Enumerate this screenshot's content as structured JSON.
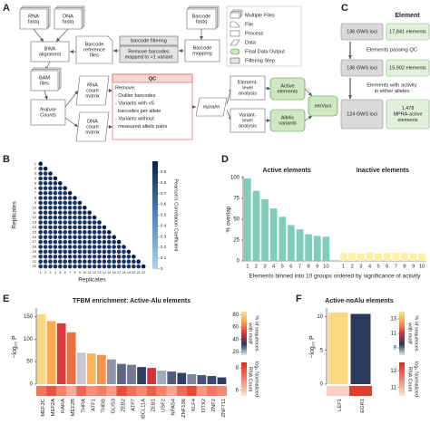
{
  "panel_a": {
    "label": "A",
    "nodes": [
      {
        "lines": [
          "RNA",
          "fastq"
        ]
      },
      {
        "lines": [
          "DNA",
          "fastq"
        ]
      },
      {
        "lines": [
          "BWA",
          "alignment"
        ]
      },
      {
        "lines": [
          "Barcode",
          "reference",
          "files"
        ]
      },
      {
        "lines": [
          "barcode filtering"
        ]
      },
      {
        "lines": [
          "Remove barcodes",
          "mapped to >1 variant"
        ]
      },
      {
        "lines": [
          "Barcode",
          "fastq"
        ]
      },
      {
        "lines": [
          "Barcode",
          "mapping"
        ]
      },
      {
        "lines": [
          "BAM",
          "files"
        ]
      },
      {
        "lines": [
          "feature",
          "Counts"
        ],
        "italic": true
      },
      {
        "lines": [
          "RNA",
          "count",
          "matrix"
        ]
      },
      {
        "lines": [
          "DNA",
          "count",
          "matrix"
        ]
      },
      {
        "lines": [
          "QC",
          "Remove:",
          "- Outlier barcodes",
          "- Variants with <5",
          "  barcodes per allele",
          "- Variants without",
          "  measured allelic pairs"
        ]
      },
      {
        "lines": [
          "mpralm"
        ],
        "italic": true
      },
      {
        "lines": [
          "Element-",
          "level",
          "analysis"
        ]
      },
      {
        "lines": [
          "Variant-",
          "level",
          "analysis"
        ]
      },
      {
        "lines": [
          "Active",
          "elements"
        ]
      },
      {
        "lines": [
          "Allelic",
          "variants"
        ]
      },
      {
        "lines": [
          "emVars"
        ]
      }
    ],
    "legend": [
      "Multiple Files",
      "File",
      "Process",
      "Data",
      "Final Data Output",
      "Filtering Step"
    ]
  },
  "panel_c": {
    "label": "C",
    "header": "Element",
    "rows": [
      {
        "loci": "136 GWS loci",
        "elements": [
          "17,841 elements"
        ]
      },
      {
        "loci": "136 GWS loci",
        "elements": [
          "15,902 elements"
        ]
      },
      {
        "loci": "124 GWS loci",
        "elements": [
          "1,478",
          "MPRA-active",
          "elements"
        ]
      }
    ],
    "steps": [
      [
        "Elements passing QC"
      ],
      [
        "Elements with activity",
        "in either alleles"
      ]
    ]
  },
  "chart_data": [
    {
      "type": "heatmap",
      "panel": "B",
      "xlabel": "Replicates",
      "ylabel": "Replicates",
      "categories": [
        1,
        2,
        3,
        4,
        5,
        6,
        7,
        8,
        9,
        10,
        11,
        12,
        13,
        14,
        15,
        16,
        17,
        18,
        19,
        20,
        21,
        22
      ],
      "matrix": [
        [
          1
        ],
        [
          0.9,
          1
        ],
        [
          0.9,
          0.9,
          1
        ],
        [
          0.9,
          0.9,
          0.9,
          1
        ],
        [
          0.9,
          0.9,
          0.9,
          0.9,
          1
        ],
        [
          0.9,
          0.9,
          0.9,
          0.9,
          0.9,
          1
        ],
        [
          0.9,
          0.9,
          0.9,
          0.9,
          0.9,
          0.9,
          1
        ],
        [
          0.9,
          0.9,
          0.9,
          0.9,
          0.9,
          0.9,
          0.9,
          1
        ],
        [
          0.9,
          0.9,
          0.9,
          0.9,
          0.9,
          0.9,
          0.9,
          0.9,
          1
        ],
        [
          0.9,
          0.9,
          0.9,
          0.9,
          0.9,
          0.9,
          0.9,
          0.9,
          0.9,
          1
        ],
        [
          0.9,
          0.9,
          0.9,
          0.9,
          0.9,
          0.9,
          0.9,
          0.9,
          0.9,
          0.9,
          1
        ],
        [
          0.9,
          0.9,
          0.9,
          0.9,
          0.9,
          0.9,
          0.9,
          0.9,
          0.9,
          0.9,
          0.9,
          1
        ],
        [
          0.9,
          0.9,
          0.9,
          0.9,
          0.9,
          0.9,
          0.9,
          0.9,
          0.9,
          0.9,
          0.9,
          0.9,
          1
        ],
        [
          0.9,
          0.9,
          0.9,
          0.9,
          0.9,
          0.9,
          0.9,
          0.9,
          0.9,
          0.9,
          0.9,
          0.9,
          0.9,
          1
        ],
        [
          0.9,
          0.9,
          0.9,
          0.9,
          0.9,
          0.9,
          0.9,
          0.9,
          0.9,
          0.9,
          0.9,
          0.9,
          0.9,
          0.9,
          1
        ],
        [
          0.9,
          0.9,
          0.9,
          0.9,
          0.9,
          0.9,
          0.9,
          0.9,
          0.9,
          0.9,
          0.9,
          0.9,
          0.9,
          0.9,
          0.9,
          1
        ],
        [
          0.9,
          0.9,
          0.9,
          0.9,
          0.9,
          0.9,
          0.9,
          0.9,
          0.9,
          0.9,
          0.9,
          0.9,
          0.9,
          0.9,
          0.9,
          0.9,
          1
        ],
        [
          0.9,
          0.9,
          0.9,
          0.9,
          0.9,
          0.9,
          0.9,
          0.9,
          0.9,
          0.9,
          0.9,
          0.9,
          0.9,
          0.9,
          0.9,
          0.9,
          0.9,
          1
        ],
        [
          0.9,
          0.9,
          0.9,
          0.9,
          0.9,
          0.9,
          0.9,
          0.9,
          0.9,
          0.9,
          0.9,
          0.9,
          0.9,
          0.9,
          0.9,
          0.9,
          0.9,
          0.9,
          1
        ],
        [
          0.9,
          0.9,
          0.9,
          0.9,
          0.9,
          0.9,
          0.9,
          0.9,
          0.9,
          0.9,
          0.9,
          0.9,
          0.9,
          0.9,
          0.9,
          0.9,
          0.9,
          0.9,
          0.9,
          1
        ],
        [
          0.9,
          0.9,
          0.9,
          0.9,
          0.9,
          0.9,
          0.9,
          0.9,
          0.9,
          0.9,
          0.9,
          0.9,
          0.9,
          0.9,
          0.9,
          0.9,
          0.9,
          0.9,
          0.9,
          0.9,
          1
        ],
        [
          0.9,
          0.9,
          0.9,
          0.9,
          0.9,
          0.9,
          0.9,
          0.9,
          0.9,
          0.9,
          0.9,
          0.9,
          0.9,
          0.9,
          0.9,
          0.9,
          0.9,
          0.9,
          0.9,
          0.9,
          0.9,
          1
        ]
      ],
      "colorbar": {
        "label": [
          "Pearson's Correlation Coefficient"
        ],
        "lim": [
          0,
          1
        ],
        "ticks": [
          0,
          0.1,
          0.2,
          0.3,
          0.4,
          0.5,
          0.6,
          0.7,
          0.8,
          0.9
        ],
        "colors": [
          "#a6d5ee",
          "#4a86c0",
          "#0b1f4d"
        ]
      }
    },
    {
      "type": "bar",
      "panel": "D",
      "ylabel": "% overlap",
      "xlabel": "Elements binned into 10 groups ordered by significance of activity",
      "categories": [
        1,
        2,
        3,
        4,
        5,
        6,
        7,
        8,
        9,
        10
      ],
      "ylim": [
        0,
        100
      ],
      "yticks": [
        0,
        25,
        50,
        75,
        100
      ],
      "series": [
        {
          "name": "Active elements",
          "color": "#7fcdbb",
          "values": [
            99,
            84,
            74,
            63,
            53,
            43,
            38,
            32,
            30,
            29
          ]
        },
        {
          "name": "Inactive elements",
          "color": "#fdf1a6",
          "values": [
            10,
            10,
            9,
            10,
            9,
            10,
            10,
            10,
            9,
            9
          ]
        }
      ]
    },
    {
      "type": "bar",
      "panel": "E",
      "title": "TFBM enrichment: Active-Alu elements",
      "ylabel": "−log₁₀ P",
      "categories": [
        "MEF2C",
        "MEF2A",
        "RARA",
        "MEF2B",
        "THRA",
        "ATF1",
        "THRB",
        "GLIS3",
        "ZEB2",
        "ATF7",
        "IBCL11A",
        "ZEB1",
        "USF2",
        "NPAS4",
        "ZNF136",
        "KLF4",
        "OTX2",
        "ZNF2",
        "ZNF711"
      ],
      "values": [
        155,
        140,
        135,
        115,
        70,
        68,
        65,
        55,
        45,
        43,
        38,
        36,
        30,
        28,
        25,
        22,
        20,
        18,
        15
      ],
      "motif_values": [
        82,
        70,
        52,
        60,
        18,
        73,
        66,
        23,
        28,
        26,
        32,
        50,
        21,
        29,
        32,
        25,
        30,
        31,
        33
      ],
      "count_values": [
        7.2,
        7.8,
        7.0,
        6.4,
        7.5,
        6.8,
        7.1,
        6.6,
        7.9,
        7.3,
        6.9,
        7.6,
        7.0,
        6.5,
        7.4,
        8.0,
        6.7,
        7.2,
        6.9
      ],
      "ylim": [
        0,
        165
      ],
      "yticks": [
        0,
        50,
        100,
        150
      ],
      "colorbars": [
        {
          "label": [
            "% of sequences",
            "with motif"
          ],
          "lim": [
            15,
            85
          ],
          "ticks": [
            20,
            40,
            60,
            80
          ],
          "colors": [
            "#e6e6ea",
            "#2b3a5e",
            "#d7303a",
            "#f6a04d",
            "#fce28a"
          ]
        },
        {
          "label": [
            "log₂ Normalized",
            "RNA Count"
          ],
          "lim": [
            5.5,
            8.5
          ],
          "ticks": [
            6,
            8
          ],
          "colors": [
            "#fde5dc",
            "#f4826a",
            "#d7301f"
          ]
        }
      ]
    },
    {
      "type": "bar",
      "panel": "F",
      "title": "Active-noAlu elements",
      "ylabel": "−log₁₀ P",
      "categories": [
        "LEF1",
        "EGR1"
      ],
      "values": [
        10.6,
        10.4
      ],
      "motif_values": [
        13.8,
        9.5
      ],
      "count_values": [
        10.4,
        13.6
      ],
      "ylim": [
        0,
        11
      ],
      "yticks": [
        0,
        5,
        10
      ],
      "colorbars": [
        {
          "label": [
            "% of sequences",
            "with motif"
          ],
          "lim": [
            8,
            14
          ],
          "ticks": [
            9,
            11,
            13
          ],
          "colors": [
            "#e6e6ea",
            "#2b3a5e",
            "#d7303a",
            "#f6a04d",
            "#fce28a"
          ]
        },
        {
          "label": [
            "log₂ Normalized",
            "RNA Count"
          ],
          "lim": [
            10,
            14
          ],
          "ticks": [
            11,
            13
          ],
          "colors": [
            "#fde5dc",
            "#f4826a",
            "#d7301f"
          ]
        }
      ]
    }
  ]
}
